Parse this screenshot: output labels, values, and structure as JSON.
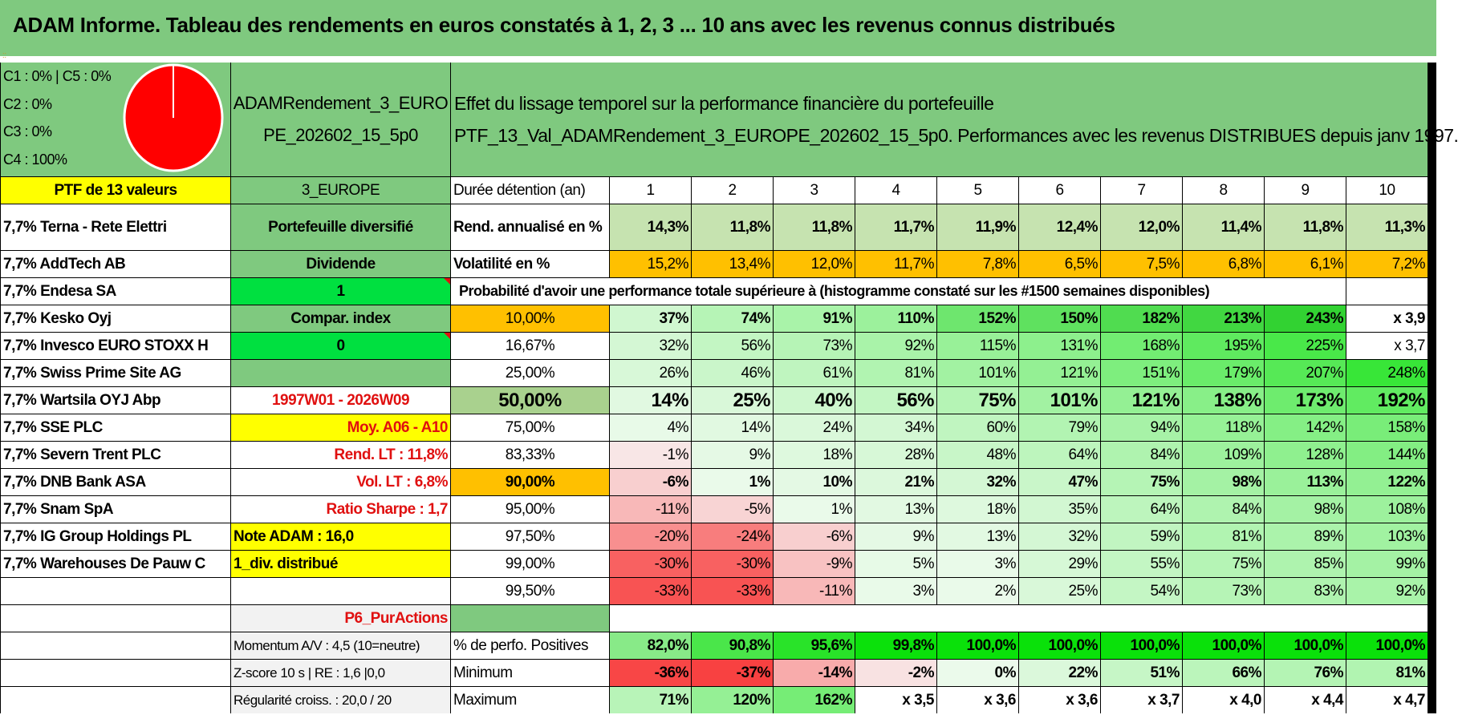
{
  "title": "ADAM Informe. Tableau des rendements en euros constatés à 1, 2, 3 ... 10 ans avec les revenus connus distribués",
  "pie": {
    "lines": [
      "C1 : 0% | C5 : 0%",
      "C2 : 0%",
      "C3 : 0%",
      "C4 : 100%"
    ],
    "color": "#ff0000",
    "values": {
      "C1": 0,
      "C2": 0,
      "C3": 0,
      "C4": 100,
      "C5": 0
    }
  },
  "header": {
    "name_lines": [
      "ADAMRendement_3_EURO",
      "PE_202602_15_5p0"
    ],
    "desc_lines": [
      "Effet du lissage temporel sur la performance financière du portefeuille",
      "PTF_13_Val_ADAMRendement_3_EUROPE_202602_15_5p0. Performances avec les revenus DISTRIBUES depuis janv 1997."
    ]
  },
  "ptf_label": "PTF de 13 valeurs",
  "region": "3_EUROPE",
  "duree_label": "Durée détention (an)",
  "years": [
    "1",
    "2",
    "3",
    "4",
    "5",
    "6",
    "7",
    "8",
    "9",
    "10"
  ],
  "holdings": [
    "7,7% Terna - Rete Elettri",
    "7,7% AddTech AB",
    "7,7% Endesa SA",
    "7,7% Kesko Oyj",
    "7,7% Invesco EURO STOXX H",
    "7,7% Swiss Prime Site AG",
    "7,7% Wartsila OYJ Abp",
    "7,7% SSE PLC",
    "7,7% Severn Trent PLC",
    "7,7% DNB Bank ASA",
    "7,7% Snam SpA",
    "7,7% IG Group Holdings PL",
    "7,7% Warehouses De Pauw C"
  ],
  "info": [
    "Portefeuille diversifié",
    "Dividende",
    "1",
    "Compar. index",
    "0",
    "",
    "1997W01 - 2026W09",
    "Moy. A06 - A10",
    "Rend. LT : 11,8%",
    "Vol. LT : 6,8%",
    "Ratio Sharpe : 1,7",
    "Note ADAM : 16,0",
    "1_div. distribué",
    "",
    "P6_PurActions"
  ],
  "rend": {
    "label": "Rend. annualisé en %",
    "values": [
      "14,3%",
      "11,8%",
      "11,8%",
      "11,7%",
      "11,9%",
      "12,4%",
      "12,0%",
      "11,4%",
      "11,8%",
      "11,3%"
    ]
  },
  "vol": {
    "label": "Volatilité en %",
    "values": [
      "15,2%",
      "13,4%",
      "12,0%",
      "11,7%",
      "7,8%",
      "6,5%",
      "7,5%",
      "6,8%",
      "6,1%",
      "7,2%"
    ]
  },
  "proba_label": "Probabilité d'avoir une performance totale supérieure à (histogramme constaté sur les #1500 semaines disponibles)",
  "quantiles": [
    {
      "p": "10,00%",
      "v": [
        "37%",
        "74%",
        "91%",
        "110%",
        "152%",
        "150%",
        "182%",
        "213%",
        "243%",
        "x 3,9"
      ]
    },
    {
      "p": "16,67%",
      "v": [
        "32%",
        "56%",
        "73%",
        "92%",
        "115%",
        "131%",
        "168%",
        "195%",
        "225%",
        "x 3,7"
      ]
    },
    {
      "p": "25,00%",
      "v": [
        "26%",
        "46%",
        "61%",
        "81%",
        "101%",
        "121%",
        "151%",
        "179%",
        "207%",
        "248%"
      ]
    },
    {
      "p": "50,00%",
      "v": [
        "14%",
        "25%",
        "40%",
        "56%",
        "75%",
        "101%",
        "121%",
        "138%",
        "173%",
        "192%"
      ]
    },
    {
      "p": "75,00%",
      "v": [
        "4%",
        "14%",
        "24%",
        "34%",
        "60%",
        "79%",
        "94%",
        "118%",
        "142%",
        "158%"
      ]
    },
    {
      "p": "83,33%",
      "v": [
        "-1%",
        "9%",
        "18%",
        "28%",
        "48%",
        "64%",
        "84%",
        "109%",
        "128%",
        "144%"
      ]
    },
    {
      "p": "90,00%",
      "v": [
        "-6%",
        "1%",
        "10%",
        "21%",
        "32%",
        "47%",
        "75%",
        "98%",
        "113%",
        "122%"
      ]
    },
    {
      "p": "95,00%",
      "v": [
        "-11%",
        "-5%",
        "1%",
        "13%",
        "18%",
        "35%",
        "64%",
        "84%",
        "98%",
        "108%"
      ]
    },
    {
      "p": "97,50%",
      "v": [
        "-20%",
        "-24%",
        "-6%",
        "9%",
        "13%",
        "32%",
        "59%",
        "81%",
        "89%",
        "103%"
      ]
    },
    {
      "p": "99,00%",
      "v": [
        "-30%",
        "-30%",
        "-9%",
        "5%",
        "3%",
        "29%",
        "55%",
        "75%",
        "85%",
        "99%"
      ]
    },
    {
      "p": "99,50%",
      "v": [
        "-33%",
        "-33%",
        "-11%",
        "3%",
        "2%",
        "25%",
        "54%",
        "73%",
        "83%",
        "92%"
      ]
    }
  ],
  "bottom": [
    {
      "info": "Momentum A/V : 4,5 (10=neutre)",
      "label": "% de perfo. Positives",
      "v": [
        "82,0%",
        "90,8%",
        "95,6%",
        "99,8%",
        "100,0%",
        "100,0%",
        "100,0%",
        "100,0%",
        "100,0%",
        "100,0%"
      ]
    },
    {
      "info": "Z-score 10 s | RE : 1,6 |0,0",
      "label": "Minimum",
      "v": [
        "-36%",
        "-37%",
        "-14%",
        "-2%",
        "0%",
        "22%",
        "51%",
        "66%",
        "76%",
        "81%"
      ]
    },
    {
      "info": "Régularité croiss. : 20,0 / 20",
      "label": "Maximum",
      "v": [
        "71%",
        "120%",
        "162%",
        "x 3,5",
        "x 3,6",
        "x 3,6",
        "x 3,7",
        "x 4,0",
        "x 4,4",
        "x 4,7"
      ]
    }
  ],
  "colors": {
    "header_green": "#7fc97f",
    "light_green": "#c6e3b0",
    "yellow": "#ffff00",
    "orange": "#ffc000",
    "bright_green": "#00e040",
    "red_text": "#e01010"
  }
}
